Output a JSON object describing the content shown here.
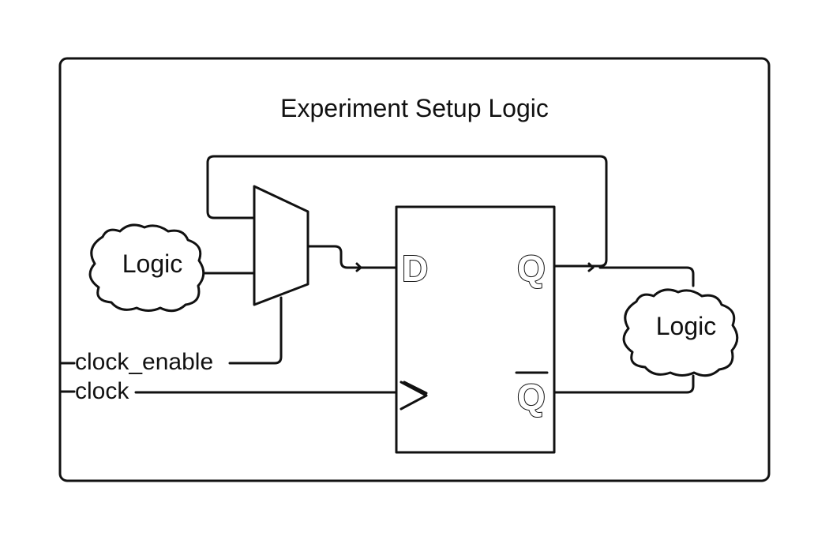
{
  "diagram": {
    "title": "Experiment Setup Logic",
    "logic_left": "Logic",
    "logic_right": "Logic",
    "signal_clock_enable": "clock_enable",
    "signal_clock": "clock",
    "pin_d": "D",
    "pin_q": "Q",
    "pin_qbar": "Q",
    "pin_clk": ">"
  }
}
